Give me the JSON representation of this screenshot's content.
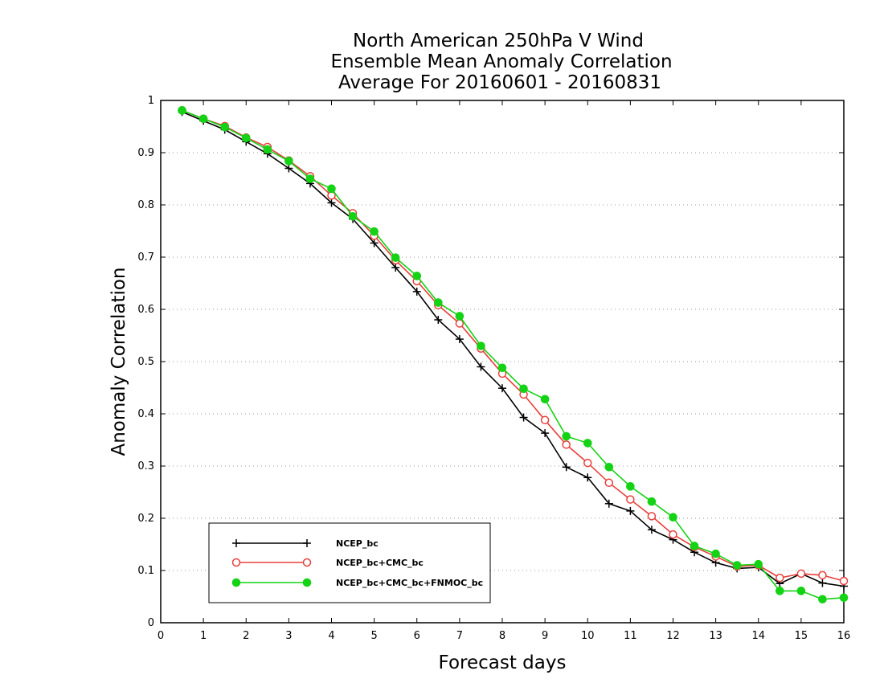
{
  "chart_data": {
    "type": "line",
    "title_lines": [
      "North American 250hPa V Wind",
      "Ensemble Mean Anomaly Correlation",
      "Average For 20160601 - 20160831"
    ],
    "xlabel": "Forecast days",
    "ylabel": "Anomaly Correlation",
    "xlim": [
      0,
      16
    ],
    "ylim": [
      0,
      1
    ],
    "x_ticks": [
      "0",
      "1",
      "2",
      "3",
      "4",
      "5",
      "6",
      "7",
      "8",
      "9",
      "10",
      "11",
      "12",
      "13",
      "14",
      "15",
      "16"
    ],
    "y_ticks": [
      "0",
      "0.1",
      "0.2",
      "0.3",
      "0.4",
      "0.5",
      "0.6",
      "0.7",
      "0.8",
      "0.9",
      "1"
    ],
    "grid": "horizontal dotted",
    "legend_position": "bottom-left",
    "x": [
      0.5,
      1,
      1.5,
      2,
      2.5,
      3,
      3.5,
      4,
      4.5,
      5,
      5.5,
      6,
      6.5,
      7,
      7.5,
      8,
      8.5,
      9,
      9.5,
      10,
      10.5,
      11,
      11.5,
      12,
      12.5,
      13,
      13.5,
      14,
      14.5,
      15,
      15.5,
      16
    ],
    "series": [
      {
        "name": "NCEP_bc",
        "color": "#000000",
        "marker": "plus",
        "values": [
          0.978,
          0.961,
          0.944,
          0.921,
          0.898,
          0.87,
          0.841,
          0.804,
          0.773,
          0.727,
          0.68,
          0.634,
          0.58,
          0.543,
          0.49,
          0.449,
          0.393,
          0.363,
          0.298,
          0.278,
          0.228,
          0.214,
          0.178,
          0.159,
          0.135,
          0.115,
          0.104,
          0.106,
          0.075,
          0.094,
          0.076,
          0.07
        ]
      },
      {
        "name": "NCEP_bc+CMC_bc",
        "color": "#e8403c",
        "marker": "open-circle",
        "values": [
          0.981,
          0.965,
          0.951,
          0.929,
          0.911,
          0.885,
          0.855,
          0.818,
          0.784,
          0.741,
          0.694,
          0.654,
          0.608,
          0.573,
          0.525,
          0.477,
          0.437,
          0.388,
          0.341,
          0.306,
          0.268,
          0.236,
          0.204,
          0.169,
          0.145,
          0.127,
          0.108,
          0.11,
          0.086,
          0.094,
          0.091,
          0.08
        ]
      },
      {
        "name": "NCEP_bc+CMC_bc+FNMOC_bc",
        "color": "#14d214",
        "marker": "filled-circle",
        "values": [
          0.981,
          0.965,
          0.949,
          0.928,
          0.906,
          0.884,
          0.85,
          0.831,
          0.778,
          0.749,
          0.699,
          0.664,
          0.613,
          0.587,
          0.53,
          0.488,
          0.448,
          0.428,
          0.357,
          0.344,
          0.298,
          0.261,
          0.232,
          0.202,
          0.147,
          0.132,
          0.11,
          0.112,
          0.061,
          0.061,
          0.045,
          0.048
        ]
      }
    ]
  }
}
